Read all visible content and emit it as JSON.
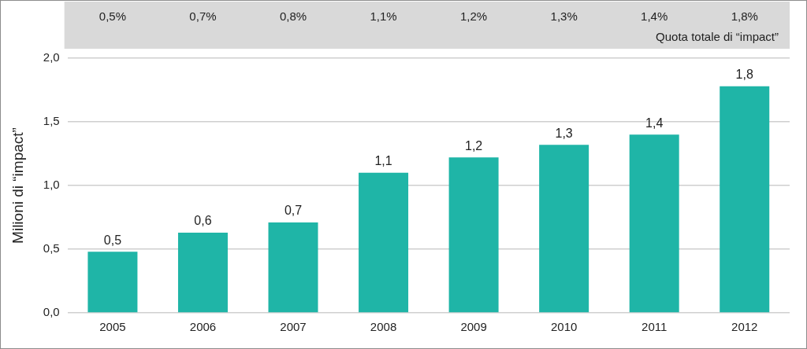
{
  "chart_data": {
    "type": "bar",
    "categories": [
      "2005",
      "2006",
      "2007",
      "2008",
      "2009",
      "2010",
      "2011",
      "2012"
    ],
    "values": [
      0.48,
      0.63,
      0.71,
      1.1,
      1.22,
      1.32,
      1.4,
      1.78
    ],
    "value_labels": [
      "0,5",
      "0,6",
      "0,7",
      "1,1",
      "1,2",
      "1,3",
      "1,4",
      "1,8"
    ],
    "data_labels": true,
    "color": "#1fb5a7",
    "y_label": "Milioni di “impact”",
    "ylim": [
      0,
      2
    ],
    "yticks": [
      {
        "value": 0,
        "label": "0,0"
      },
      {
        "value": 0.5,
        "label": "0,5"
      },
      {
        "value": 1,
        "label": "1,0"
      },
      {
        "value": 1.5,
        "label": "1,5"
      },
      {
        "value": 2,
        "label": "2,0"
      }
    ],
    "grid": true,
    "top_row": {
      "title": "Quota totale di “impact”",
      "values": [
        0.5,
        0.7,
        0.8,
        1.1,
        1.2,
        1.3,
        1.4,
        1.8
      ],
      "value_labels": [
        "0,5%",
        "0,7%",
        "0,8%",
        "1,1%",
        "1,2%",
        "1,3%",
        "1,4%",
        "1,8%"
      ]
    }
  }
}
